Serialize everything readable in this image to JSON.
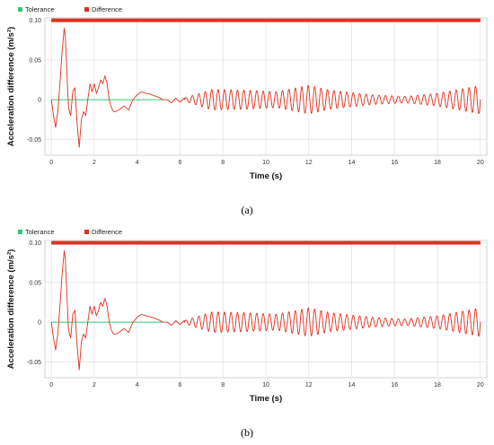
{
  "chart_data": [
    {
      "type": "line",
      "caption": "(a)",
      "xlabel": "Time (s)",
      "ylabel": "Acceleration difference (m/s²)",
      "xlim": [
        -0.3,
        20.3
      ],
      "ylim": [
        -0.07,
        0.103
      ],
      "xticks": [
        0,
        2,
        4,
        6,
        8,
        10,
        12,
        14,
        16,
        18,
        20
      ],
      "yticks": [
        0.1,
        0.05,
        0,
        -0.05
      ],
      "ytick_labels": [
        "0.10",
        "0.05",
        "0",
        "-0.05"
      ],
      "grid": true,
      "legend_position": "top-left",
      "series": [
        {
          "name": "Tolerance",
          "color": "#2ecc71",
          "x": [
            0,
            5.2
          ],
          "y": [
            0,
            0
          ]
        },
        {
          "name": "Difference",
          "color": "#e0301e",
          "band": {
            "y": 0.1,
            "x": [
              0,
              20
            ]
          },
          "x": [
            0,
            0.1,
            0.2,
            0.3,
            0.4,
            0.5,
            0.6,
            0.65,
            0.7,
            0.8,
            0.9,
            1.0,
            1.1,
            1.2,
            1.3,
            1.4,
            1.5,
            1.6,
            1.7,
            1.8,
            1.9,
            2.0,
            2.1,
            2.2,
            2.3,
            2.4,
            2.5,
            2.6,
            2.7,
            2.8,
            2.9,
            3.0,
            3.2,
            3.4,
            3.6,
            3.8,
            4.0,
            4.2,
            4.4,
            4.6,
            4.8,
            5.0,
            5.2,
            5.4,
            5.6,
            5.8,
            6.0,
            6.2
          ],
          "y": [
            0,
            -0.02,
            -0.035,
            -0.015,
            0.02,
            0.06,
            0.09,
            0.08,
            0.05,
            -0.01,
            -0.02,
            0.01,
            0.015,
            -0.03,
            -0.06,
            -0.025,
            -0.015,
            -0.02,
            0.0,
            0.02,
            0.01,
            0.02,
            0.008,
            0.015,
            0.025,
            0.02,
            0.03,
            0.02,
            0.0,
            -0.01,
            -0.015,
            -0.015,
            -0.012,
            -0.008,
            -0.013,
            0.0,
            0.006,
            0.01,
            0.008,
            0.007,
            0.005,
            0.003,
            0.0,
            0.0,
            -0.004,
            0.002,
            -0.003,
            0.002
          ],
          "oscillation": {
            "x_range": [
              6.2,
              20
            ],
            "period_s": 0.3,
            "amplitude_envelope": {
              "x": [
                6.2,
                7.5,
                9.0,
                10.5,
                12.0,
                13.0,
                15.0,
                16.5,
                18.0,
                20.0
              ],
              "y": [
                0.002,
                0.013,
                0.012,
                0.01,
                0.018,
                0.012,
                0.006,
                0.004,
                0.008,
                0.018
              ]
            }
          }
        }
      ]
    },
    {
      "type": "line",
      "caption": "(b)",
      "xlabel": "Time (s)",
      "ylabel": "Acceleration difference (m/s²)",
      "xlim": [
        -0.3,
        20.3
      ],
      "ylim": [
        -0.07,
        0.103
      ],
      "xticks": [
        0,
        2,
        4,
        6,
        8,
        10,
        12,
        14,
        16,
        18,
        20
      ],
      "yticks": [
        0.1,
        0.05,
        0,
        -0.05
      ],
      "ytick_labels": [
        "0.10",
        "0.05",
        "0",
        "-0.05"
      ],
      "grid": true,
      "legend_position": "top-left",
      "series": [
        {
          "name": "Tolerance",
          "color": "#2ecc71",
          "x": [
            0,
            5.2
          ],
          "y": [
            0,
            0
          ]
        },
        {
          "name": "Difference",
          "color": "#e0301e",
          "band": {
            "y": 0.1,
            "x": [
              0,
              20
            ]
          },
          "x": [
            0,
            0.1,
            0.2,
            0.3,
            0.4,
            0.5,
            0.6,
            0.65,
            0.7,
            0.8,
            0.9,
            1.0,
            1.1,
            1.2,
            1.3,
            1.4,
            1.5,
            1.6,
            1.7,
            1.8,
            1.9,
            2.0,
            2.1,
            2.2,
            2.3,
            2.4,
            2.5,
            2.6,
            2.7,
            2.8,
            2.9,
            3.0,
            3.2,
            3.4,
            3.6,
            3.8,
            4.0,
            4.2,
            4.4,
            4.6,
            4.8,
            5.0,
            5.2,
            5.4,
            5.6,
            5.8,
            6.0,
            6.2
          ],
          "y": [
            0,
            -0.02,
            -0.035,
            -0.015,
            0.02,
            0.06,
            0.09,
            0.08,
            0.05,
            -0.01,
            -0.02,
            0.01,
            0.015,
            -0.03,
            -0.06,
            -0.025,
            -0.015,
            -0.02,
            0.0,
            0.02,
            0.01,
            0.02,
            0.008,
            0.015,
            0.025,
            0.02,
            0.03,
            0.02,
            0.0,
            -0.01,
            -0.015,
            -0.015,
            -0.012,
            -0.008,
            -0.013,
            0.0,
            0.006,
            0.01,
            0.008,
            0.007,
            0.005,
            0.003,
            0.0,
            0.0,
            -0.004,
            0.002,
            -0.003,
            0.002
          ],
          "oscillation": {
            "x_range": [
              6.2,
              20
            ],
            "period_s": 0.3,
            "amplitude_envelope": {
              "x": [
                6.2,
                7.5,
                9.0,
                10.5,
                12.0,
                13.0,
                15.0,
                16.5,
                18.0,
                20.0
              ],
              "y": [
                0.002,
                0.013,
                0.012,
                0.01,
                0.018,
                0.012,
                0.006,
                0.004,
                0.008,
                0.018
              ]
            }
          }
        }
      ]
    }
  ]
}
